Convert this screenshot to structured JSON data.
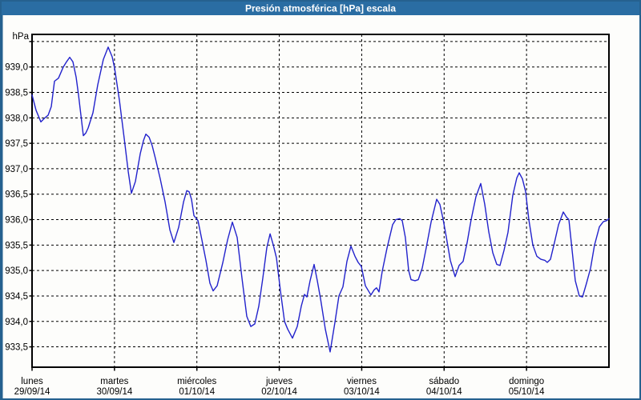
{
  "colors": {
    "titlebar": "#2A6DA3",
    "window_border": "#25618F",
    "background": "#FDFDFB",
    "line": "#2222CC"
  },
  "chart_data": {
    "type": "line",
    "title": "Presión atmosférica [hPa] escala",
    "grid": {
      "style": "dashed",
      "color": "#000000",
      "legend": "none"
    },
    "x_axis": {
      "range_days": [
        0,
        7
      ],
      "categories": [
        {
          "name": "lunes",
          "date": "29/09/14"
        },
        {
          "name": "martes",
          "date": "30/09/14"
        },
        {
          "name": "miércoles",
          "date": "01/10/14"
        },
        {
          "name": "jueves",
          "date": "02/10/14"
        },
        {
          "name": "viernes",
          "date": "03/10/14"
        },
        {
          "name": "sábado",
          "date": "04/10/14"
        },
        {
          "name": "domingo",
          "date": "05/10/14"
        }
      ]
    },
    "y_axis": {
      "unit": "hPa",
      "min": 933.1,
      "max": 939.64,
      "gridline_values": [
        939.5,
        939.0,
        938.5,
        938.0,
        937.5,
        937.0,
        936.5,
        936.0,
        935.5,
        935.0,
        934.5,
        934.0,
        933.5
      ],
      "tick_labels": [
        "",
        "939,0",
        "938,5",
        "938,0",
        "937,5",
        "937,0",
        "936,5",
        "936,0",
        "935,5",
        "935,0",
        "934,5",
        "934,0",
        "933,5"
      ]
    },
    "series": [
      {
        "name": "Presión atmosférica [hPa]",
        "color": "#2222CC",
        "points": [
          [
            0.0,
            938.45
          ],
          [
            0.049,
            938.15
          ],
          [
            0.107,
            937.92
          ],
          [
            0.156,
            938.0
          ],
          [
            0.194,
            938.05
          ],
          [
            0.233,
            938.22
          ],
          [
            0.272,
            938.72
          ],
          [
            0.321,
            938.78
          ],
          [
            0.379,
            939.0
          ],
          [
            0.418,
            939.1
          ],
          [
            0.457,
            939.19
          ],
          [
            0.496,
            939.1
          ],
          [
            0.535,
            938.8
          ],
          [
            0.564,
            938.45
          ],
          [
            0.593,
            938.05
          ],
          [
            0.622,
            937.65
          ],
          [
            0.651,
            937.7
          ],
          [
            0.681,
            937.8
          ],
          [
            0.739,
            938.1
          ],
          [
            0.797,
            938.65
          ],
          [
            0.865,
            939.15
          ],
          [
            0.924,
            939.39
          ],
          [
            0.972,
            939.2
          ],
          [
            1.001,
            938.98
          ],
          [
            1.06,
            938.35
          ],
          [
            1.118,
            937.6
          ],
          [
            1.167,
            936.95
          ],
          [
            1.206,
            936.52
          ],
          [
            1.254,
            936.75
          ],
          [
            1.313,
            937.3
          ],
          [
            1.351,
            937.55
          ],
          [
            1.381,
            937.68
          ],
          [
            1.42,
            937.62
          ],
          [
            1.458,
            937.45
          ],
          [
            1.497,
            937.2
          ],
          [
            1.556,
            936.8
          ],
          [
            1.614,
            936.35
          ],
          [
            1.672,
            935.8
          ],
          [
            1.721,
            935.55
          ],
          [
            1.779,
            935.85
          ],
          [
            1.838,
            936.35
          ],
          [
            1.877,
            936.57
          ],
          [
            1.906,
            936.55
          ],
          [
            1.935,
            936.4
          ],
          [
            1.964,
            936.08
          ],
          [
            2.013,
            935.98
          ],
          [
            2.061,
            935.6
          ],
          [
            2.11,
            935.2
          ],
          [
            2.158,
            934.75
          ],
          [
            2.197,
            934.6
          ],
          [
            2.246,
            934.7
          ],
          [
            2.314,
            935.15
          ],
          [
            2.372,
            935.6
          ],
          [
            2.431,
            935.95
          ],
          [
            2.489,
            935.65
          ],
          [
            2.547,
            934.85
          ],
          [
            2.606,
            934.1
          ],
          [
            2.654,
            933.9
          ],
          [
            2.703,
            933.95
          ],
          [
            2.751,
            934.3
          ],
          [
            2.8,
            934.85
          ],
          [
            2.849,
            935.45
          ],
          [
            2.888,
            935.72
          ],
          [
            2.927,
            935.5
          ],
          [
            2.965,
            935.25
          ],
          [
            3.014,
            934.6
          ],
          [
            3.063,
            934.0
          ],
          [
            3.101,
            933.85
          ],
          [
            3.16,
            933.67
          ],
          [
            3.218,
            933.9
          ],
          [
            3.267,
            934.3
          ],
          [
            3.306,
            934.53
          ],
          [
            3.335,
            934.48
          ],
          [
            3.374,
            934.8
          ],
          [
            3.422,
            935.12
          ],
          [
            3.461,
            934.8
          ],
          [
            3.5,
            934.45
          ],
          [
            3.558,
            933.85
          ],
          [
            3.617,
            933.4
          ],
          [
            3.675,
            933.98
          ],
          [
            3.724,
            934.5
          ],
          [
            3.772,
            934.68
          ],
          [
            3.821,
            935.18
          ],
          [
            3.869,
            935.48
          ],
          [
            3.918,
            935.28
          ],
          [
            3.957,
            935.16
          ],
          [
            3.996,
            935.08
          ],
          [
            4.044,
            934.7
          ],
          [
            4.112,
            934.52
          ],
          [
            4.151,
            934.62
          ],
          [
            4.18,
            934.66
          ],
          [
            4.21,
            934.58
          ],
          [
            4.249,
            934.98
          ],
          [
            4.307,
            935.44
          ],
          [
            4.375,
            935.9
          ],
          [
            4.414,
            936.0
          ],
          [
            4.462,
            936.02
          ],
          [
            4.492,
            935.98
          ],
          [
            4.53,
            935.65
          ],
          [
            4.569,
            935.0
          ],
          [
            4.599,
            934.82
          ],
          [
            4.647,
            934.8
          ],
          [
            4.686,
            934.82
          ],
          [
            4.735,
            935.05
          ],
          [
            4.783,
            935.45
          ],
          [
            4.842,
            935.95
          ],
          [
            4.91,
            936.4
          ],
          [
            4.949,
            936.3
          ],
          [
            4.988,
            936.0
          ],
          [
            5.027,
            935.65
          ],
          [
            5.075,
            935.2
          ],
          [
            5.133,
            934.88
          ],
          [
            5.182,
            935.1
          ],
          [
            5.231,
            935.18
          ],
          [
            5.279,
            935.55
          ],
          [
            5.328,
            936.0
          ],
          [
            5.386,
            936.45
          ],
          [
            5.444,
            936.71
          ],
          [
            5.493,
            936.3
          ],
          [
            5.542,
            935.76
          ],
          [
            5.59,
            935.35
          ],
          [
            5.639,
            935.12
          ],
          [
            5.678,
            935.1
          ],
          [
            5.727,
            935.4
          ],
          [
            5.775,
            935.75
          ],
          [
            5.833,
            936.48
          ],
          [
            5.882,
            936.82
          ],
          [
            5.911,
            936.92
          ],
          [
            5.95,
            936.8
          ],
          [
            5.989,
            936.55
          ],
          [
            6.028,
            936.0
          ],
          [
            6.076,
            935.5
          ],
          [
            6.125,
            935.28
          ],
          [
            6.174,
            935.22
          ],
          [
            6.222,
            935.2
          ],
          [
            6.251,
            935.16
          ],
          [
            6.29,
            935.22
          ],
          [
            6.339,
            935.55
          ],
          [
            6.388,
            935.9
          ],
          [
            6.446,
            936.15
          ],
          [
            6.485,
            936.05
          ],
          [
            6.514,
            936.0
          ],
          [
            6.553,
            935.4
          ],
          [
            6.592,
            934.8
          ],
          [
            6.64,
            934.5
          ],
          [
            6.679,
            934.48
          ],
          [
            6.728,
            934.75
          ],
          [
            6.777,
            935.05
          ],
          [
            6.825,
            935.5
          ],
          [
            6.884,
            935.86
          ],
          [
            6.932,
            935.96
          ],
          [
            6.971,
            935.98
          ],
          [
            7.0,
            936.02
          ]
        ]
      }
    ]
  }
}
